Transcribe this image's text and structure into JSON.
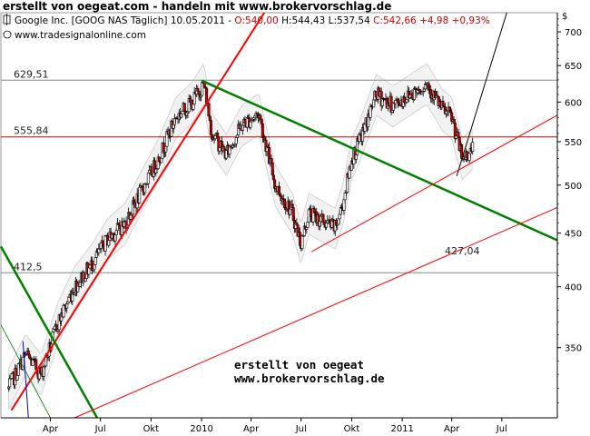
{
  "header": {
    "title": "erstellt von oegeat.com - handeln mit www.brokervorschlag.de"
  },
  "chart_data": {
    "type": "candlestick",
    "info_line": {
      "symbol": "Google Inc. [GOOG NAS  Täglich] 10.05.2011",
      "open": "O:540,00",
      "high": "H:544,43",
      "low": "L:537,54",
      "close": "C:542,66",
      "change": "+4,98 +0,93%"
    },
    "copyright": "www.tradesignalonline.com",
    "y_axis": {
      "ticks": [
        350,
        400,
        450,
        500,
        550,
        600,
        650,
        700
      ],
      "scale": "log",
      "range": [
        300,
        730
      ]
    },
    "x_axis": {
      "tick_labels": [
        "Apr",
        "Jul",
        "Okt",
        "2010",
        "Apr",
        "Jul",
        "Okt",
        "2011",
        "Apr",
        "Jul"
      ],
      "range": [
        "2009-01-01",
        "2011-10-10"
      ]
    },
    "levels": [
      {
        "label": "629,51",
        "value": 629.51
      },
      {
        "label": "555,84",
        "value": 555.84
      },
      {
        "label": "412,5",
        "value": 412.5
      },
      {
        "label": "427,04",
        "value": 427.04
      }
    ],
    "series": [
      {
        "x": [
          "2009-01-15",
          "2009-02-15",
          "2009-03-15",
          "2009-04-15",
          "2009-05-15",
          "2009-06-15",
          "2009-07-15",
          "2009-08-15",
          "2009-09-15",
          "2009-10-15",
          "2009-11-15",
          "2009-12-15",
          "2010-01-05",
          "2010-01-20",
          "2010-02-15",
          "2010-03-15",
          "2010-04-15",
          "2010-05-15",
          "2010-06-15",
          "2010-07-01",
          "2010-07-15",
          "2010-08-15",
          "2010-09-01",
          "2010-09-15",
          "2010-10-01",
          "2010-10-15",
          "2010-11-15",
          "2010-12-15",
          "2011-01-15",
          "2011-02-15",
          "2011-03-15",
          "2011-04-01",
          "2011-04-20",
          "2011-05-10"
        ],
        "values": [
          320,
          345,
          330,
          370,
          400,
          420,
          445,
          460,
          495,
          530,
          580,
          600,
          625,
          560,
          535,
          570,
          585,
          500,
          470,
          440,
          470,
          460,
          455,
          480,
          530,
          550,
          610,
          595,
          610,
          625,
          590,
          580,
          530,
          542.66
        ]
      }
    ],
    "trendlines": [
      {
        "color": "#ff0000",
        "from": [
          "2009-01-20",
          305
        ],
        "to": [
          "2010-04-25",
          730
        ],
        "width": 2
      },
      {
        "color": "#008000",
        "from": [
          "2010-01-01",
          629
        ],
        "to": [
          "2011-10-10",
          443
        ],
        "width": 2.5
      },
      {
        "color": "#008000",
        "from": [
          "2009-01-01",
          437
        ],
        "to": [
          "2009-06-25",
          300
        ],
        "width": 2.5
      },
      {
        "color": "#ff0000",
        "from": [
          "2010-07-20",
          432
        ],
        "to": [
          "2011-10-10",
          583
        ],
        "width": 1
      },
      {
        "color": "#ff0000",
        "from": [
          "2009-05-15",
          300
        ],
        "to": [
          "2011-10-10",
          476
        ],
        "width": 1
      },
      {
        "color": "#008000",
        "from": [
          "2009-01-01",
          368
        ],
        "to": [
          "2009-04-01",
          300
        ],
        "width": 0.8
      },
      {
        "color": "#000000",
        "from": [
          "2011-04-10",
          510
        ],
        "to": [
          "2011-07-10",
          730
        ],
        "width": 1
      }
    ],
    "watermark": [
      "erstellt von oegeat",
      "www.brokervorschlag.de"
    ]
  }
}
